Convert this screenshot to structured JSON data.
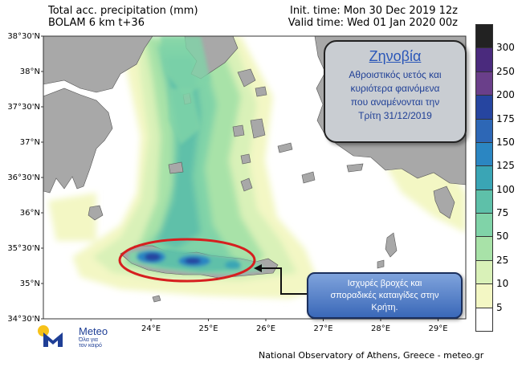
{
  "header": {
    "left_line1": "Total acc. precipitation (mm)",
    "left_line2": "BOLAM 6 km t+36",
    "right_line1": "Init. time: Mon 30 Dec 2019 12z",
    "right_line2": "Valid time: Wed 01 Jan 2020 00z"
  },
  "axes": {
    "lat_labels": [
      "38°30'N",
      "38°N",
      "37°30'N",
      "37°N",
      "36°30'N",
      "36°N",
      "35°30'N",
      "35°N",
      "34°30'N"
    ],
    "lon_labels": [
      "24°E",
      "25°E",
      "26°E",
      "27°E",
      "28°E",
      "29°E"
    ]
  },
  "colorbar": {
    "levels": [
      "5",
      "10",
      "25",
      "50",
      "75",
      "100",
      "125",
      "150",
      "175",
      "200",
      "250",
      "300"
    ],
    "colors": [
      "#ffffff",
      "#f3f7c4",
      "#d9f1b8",
      "#a8e2a8",
      "#80d3a8",
      "#5ec0a9",
      "#3aa5b5",
      "#2b86c2",
      "#2d67b6",
      "#2645a0",
      "#6a3f8a",
      "#4a2a7d",
      "#222222"
    ]
  },
  "note": {
    "title": "Ζηνοβία",
    "line1": "Αθροιστικός υετός και",
    "line2": "κυριότερα φαινόμενα",
    "line3": "που αναμένονται την",
    "line4": "Τρίτη 31/12/2019"
  },
  "alert": {
    "line1": "Ισχυρές βροχές και",
    "line2": "σποραδικές καταιγίδες στην",
    "line3": "Κρήτη."
  },
  "logo": {
    "name": "Meteo",
    "tagline1": "Όλα για",
    "tagline2": "τον καιρό"
  },
  "credit": "National Observatory of Athens, Greece - meteo.gr",
  "colors": {
    "land": "#a8a8a8",
    "sea": "#ffffff",
    "highlight_ellipse": "#d61f1f",
    "note_title": "#2a56b8"
  }
}
